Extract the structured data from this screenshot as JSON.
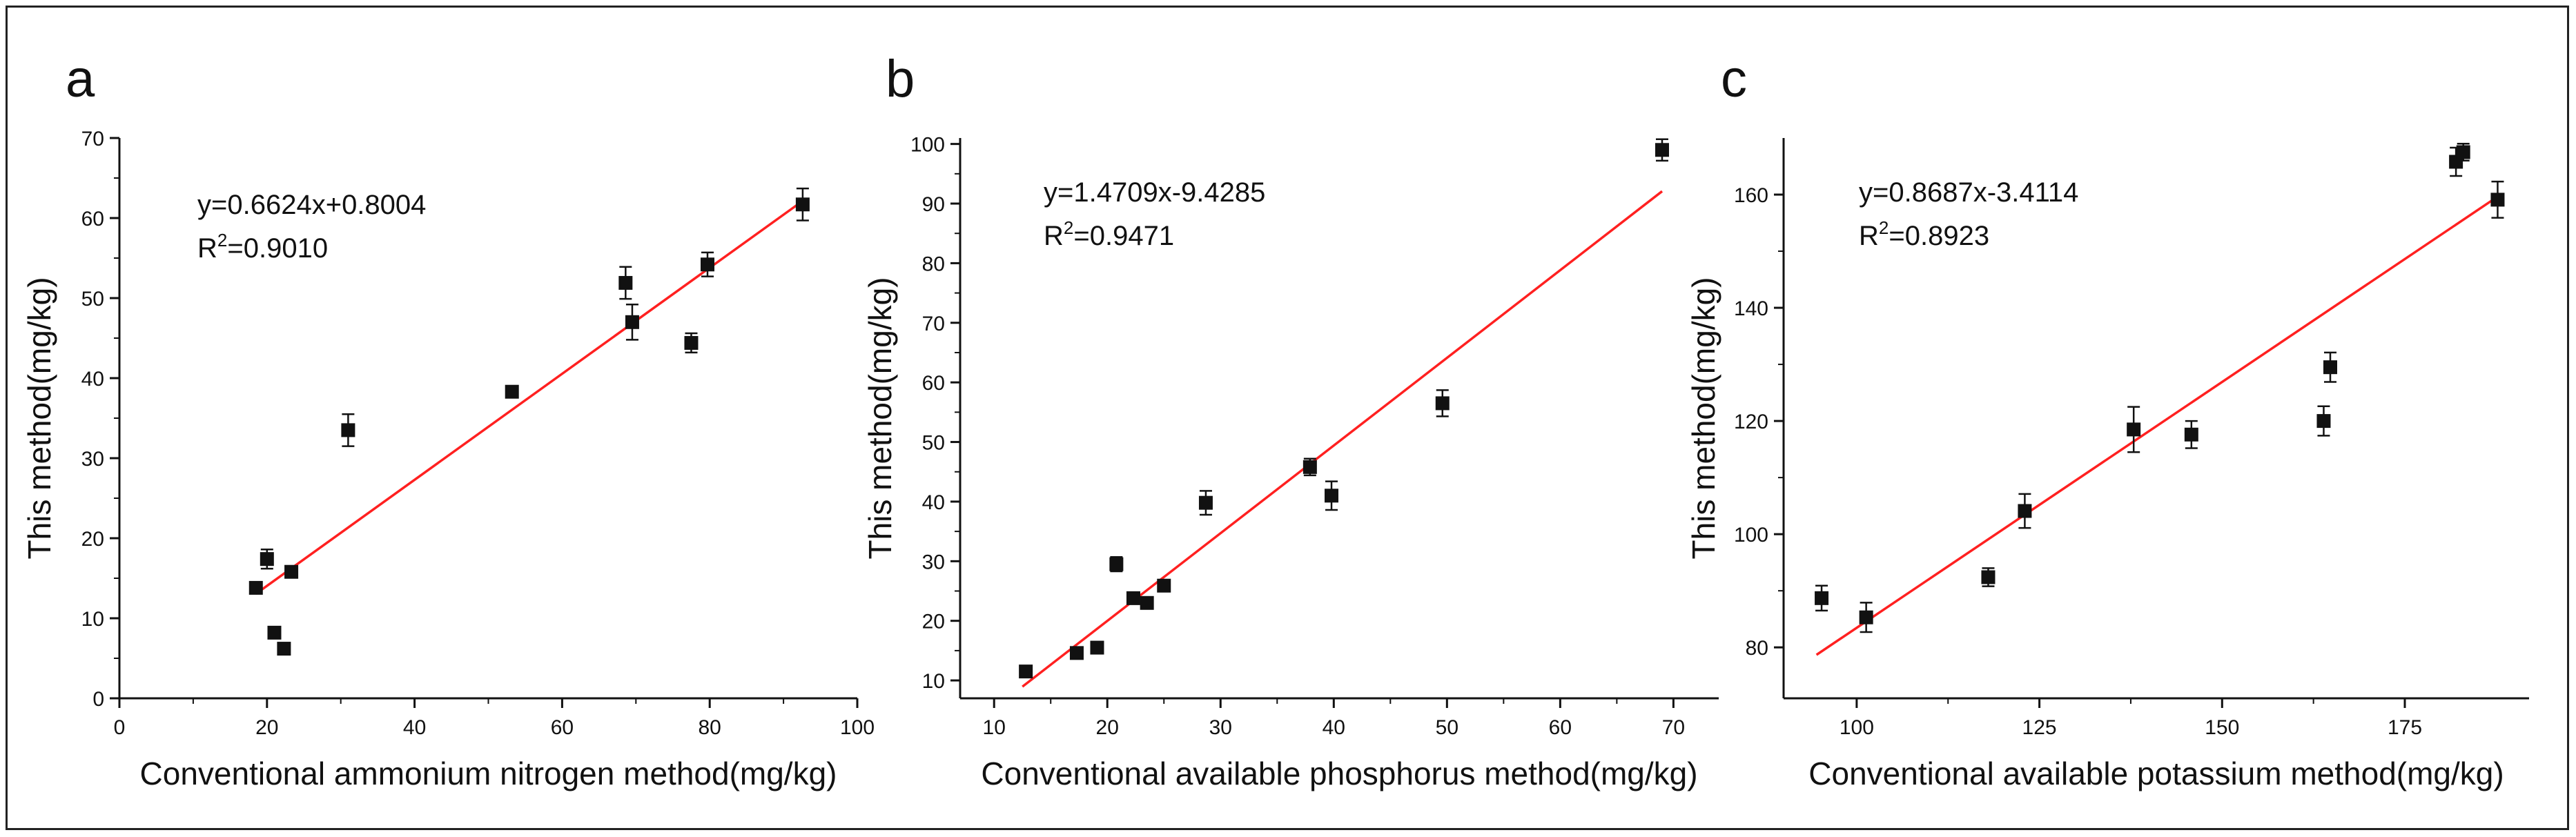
{
  "colors": {
    "fit_line": "#ff2020",
    "points": "#111111",
    "axes": "#111111"
  },
  "chart_data": [
    {
      "type": "scatter",
      "panel_label": "a",
      "xlabel": "Conventional ammonium nitrogen method(mg/kg)",
      "ylabel": "This method(mg/kg)",
      "xlim": [
        0,
        100
      ],
      "ylim": [
        0,
        70
      ],
      "xticks": [
        0,
        20,
        40,
        60,
        80,
        100
      ],
      "yticks": [
        0,
        10,
        20,
        30,
        40,
        50,
        60,
        70
      ],
      "equation": "y=0.6624x+0.8004",
      "r2_prefix": "R",
      "r2_sup": "2",
      "r2_value": "=0.9010",
      "fit": {
        "slope": 0.6624,
        "intercept": 0.8004,
        "x_range": [
          18.5,
          92.5
        ]
      },
      "points": [
        {
          "x": 18.5,
          "y": 13.8,
          "err": 0.6
        },
        {
          "x": 20.0,
          "y": 17.4,
          "err": 1.2
        },
        {
          "x": 21.0,
          "y": 8.2,
          "err": 0.6
        },
        {
          "x": 22.3,
          "y": 6.2,
          "err": 0.6
        },
        {
          "x": 23.3,
          "y": 15.8,
          "err": 0.6
        },
        {
          "x": 31.0,
          "y": 33.5,
          "err": 2.0
        },
        {
          "x": 53.2,
          "y": 38.3,
          "err": 0.6
        },
        {
          "x": 68.6,
          "y": 51.9,
          "err": 2.0
        },
        {
          "x": 69.5,
          "y": 47.0,
          "err": 2.2
        },
        {
          "x": 77.5,
          "y": 44.4,
          "err": 1.2
        },
        {
          "x": 79.7,
          "y": 54.2,
          "err": 1.5
        },
        {
          "x": 92.6,
          "y": 61.7,
          "err": 2.0
        }
      ]
    },
    {
      "type": "scatter",
      "panel_label": "b",
      "xlabel": "Conventional available phosphorus method(mg/kg)",
      "ylabel": "This method(mg/kg)",
      "xlim": [
        7,
        74
      ],
      "ylim": [
        7,
        101
      ],
      "xticks": [
        10,
        20,
        30,
        40,
        50,
        60,
        70
      ],
      "yticks": [
        10,
        20,
        30,
        40,
        50,
        60,
        70,
        80,
        90,
        100
      ],
      "equation": "y=1.4709x-9.4285",
      "r2_prefix": "R",
      "r2_sup": "2",
      "r2_value": "=0.9471",
      "fit": {
        "slope": 1.4709,
        "intercept": -9.4285,
        "x_range": [
          12.5,
          69.0
        ]
      },
      "points": [
        {
          "x": 12.8,
          "y": 11.5,
          "err": 0.6
        },
        {
          "x": 17.3,
          "y": 14.6,
          "err": 0.6
        },
        {
          "x": 19.1,
          "y": 15.5,
          "err": 0.6
        },
        {
          "x": 20.8,
          "y": 29.5,
          "err": 1.2
        },
        {
          "x": 22.3,
          "y": 23.8,
          "err": 0.6
        },
        {
          "x": 23.5,
          "y": 23.0,
          "err": 0.6
        },
        {
          "x": 25.0,
          "y": 25.9,
          "err": 0.6
        },
        {
          "x": 28.7,
          "y": 39.8,
          "err": 2.0
        },
        {
          "x": 37.9,
          "y": 45.8,
          "err": 1.4
        },
        {
          "x": 39.8,
          "y": 41.0,
          "err": 2.4
        },
        {
          "x": 49.6,
          "y": 56.5,
          "err": 2.2
        },
        {
          "x": 69.0,
          "y": 99.0,
          "err": 1.8
        }
      ]
    },
    {
      "type": "scatter",
      "panel_label": "c",
      "xlabel": "Conventional available potassium method(mg/kg)",
      "ylabel": "This method(mg/kg)",
      "xlim": [
        90,
        192
      ],
      "ylim": [
        71,
        170
      ],
      "xticks": [
        100,
        125,
        150,
        175
      ],
      "yticks": [
        80,
        100,
        120,
        140,
        160
      ],
      "equation": "y=0.8687x-3.4114",
      "r2_prefix": "R",
      "r2_sup": "2",
      "r2_value": "=0.8923",
      "fit": {
        "slope": 0.8687,
        "intercept": -3.4114,
        "x_range": [
          94.5,
          188.0
        ]
      },
      "points": [
        {
          "x": 95.2,
          "y": 88.7,
          "err": 2.2
        },
        {
          "x": 101.3,
          "y": 85.3,
          "err": 2.6
        },
        {
          "x": 118.0,
          "y": 92.4,
          "err": 1.6
        },
        {
          "x": 123.0,
          "y": 104.1,
          "err": 3.0
        },
        {
          "x": 137.9,
          "y": 118.5,
          "err": 4.0
        },
        {
          "x": 145.8,
          "y": 117.6,
          "err": 2.4
        },
        {
          "x": 163.9,
          "y": 120.0,
          "err": 2.6
        },
        {
          "x": 164.8,
          "y": 129.5,
          "err": 2.6
        },
        {
          "x": 182.0,
          "y": 165.8,
          "err": 2.5
        },
        {
          "x": 183.0,
          "y": 167.5,
          "err": 1.5
        },
        {
          "x": 187.7,
          "y": 159.1,
          "err": 3.2
        }
      ]
    }
  ]
}
